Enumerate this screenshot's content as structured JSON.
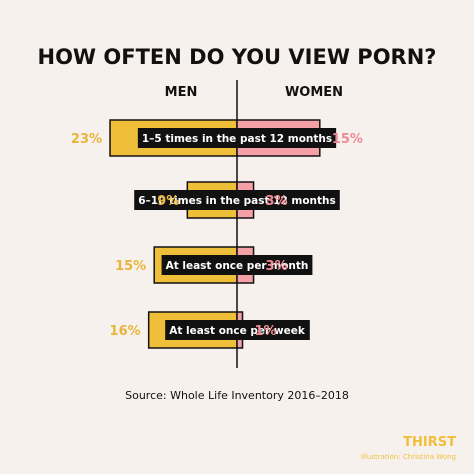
{
  "chart_data": {
    "type": "bar",
    "title": "HOW OFTEN DO YOU VIEW PORN?",
    "categories": [
      "1–5 times in the past 12 months",
      "6–10 times in the past 12 months",
      "At least once per month",
      "At least once per week"
    ],
    "series": [
      {
        "name": "MEN",
        "values": [
          23,
          9,
          15,
          16
        ],
        "labels": [
          "23%",
          "9%",
          "15%",
          "16%"
        ],
        "color": "#f0bf3a",
        "text_color": "#e8b53a"
      },
      {
        "name": "WOMEN",
        "values": [
          15,
          3,
          3,
          1
        ],
        "labels": [
          "15%",
          "3%",
          "3%",
          "1%"
        ],
        "color": "#f4a0a6",
        "text_color": "#f08a92"
      }
    ],
    "source": "Source: Whole Life Inventory 2016–2018",
    "grid": false
  },
  "branding": {
    "logo": "THIRST",
    "credit": "Illustration: Christina Wong",
    "color": "#f0bf3a"
  }
}
